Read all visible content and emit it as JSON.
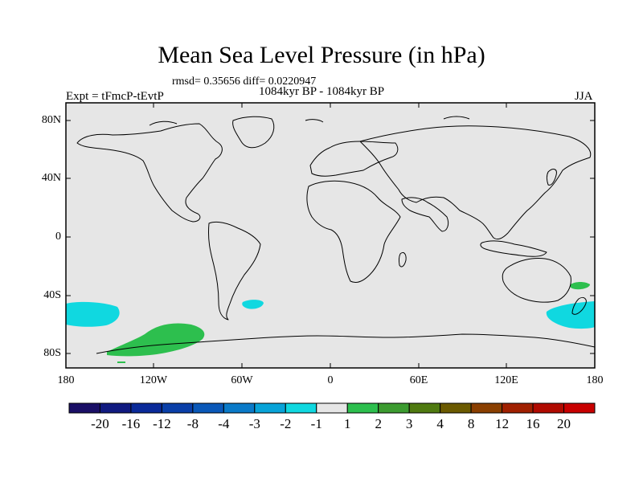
{
  "title": "Mean Sea Level Pressure (in hPa)",
  "stats": "rmsd= 0.35656 diff= 0.0220947",
  "period": "1084kyr BP - 1084kyr BP",
  "experiment": "Expt = tFmcP-tEvtP",
  "season": "JJA",
  "lat_labels": [
    "80N",
    "40N",
    "0",
    "40S",
    "80S"
  ],
  "lon_labels": [
    "180",
    "120W",
    "60W",
    "0",
    "60E",
    "120E",
    "180"
  ],
  "colors": {
    "land_ocean_bg": "#e6e6e6",
    "coast": "#000000",
    "positive_anomaly": "#2dbf4e",
    "negative_anomaly": "#10d8e0"
  },
  "colorbar": {
    "labels": [
      "-20",
      "-16",
      "-12",
      "-8",
      "-4",
      "-3",
      "-2",
      "-1",
      "1",
      "2",
      "3",
      "4",
      "8",
      "12",
      "16",
      "20"
    ],
    "colors": [
      "#1a0f66",
      "#101a80",
      "#0a2a99",
      "#0a3fa8",
      "#0a58b8",
      "#0a7ac8",
      "#08a3d8",
      "#10d8e0",
      "#e6e6e6",
      "#2dbf4e",
      "#3c9b30",
      "#4f7a10",
      "#6b5a00",
      "#8a3f00",
      "#a02000",
      "#b00a00",
      "#c80000"
    ]
  }
}
